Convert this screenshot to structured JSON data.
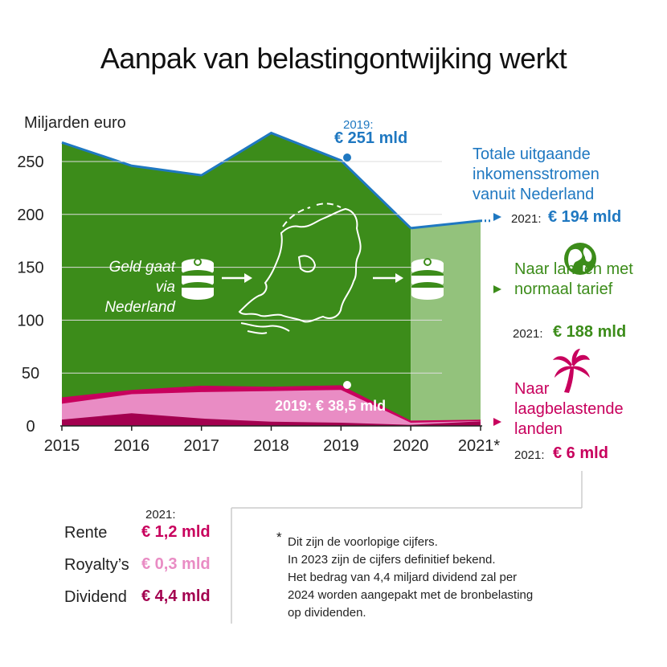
{
  "title": "Aanpak van belastingontwijking werkt",
  "colors": {
    "green": "#3c8c1a",
    "green_light": "#93c27c",
    "blue": "#1f78c1",
    "magenta": "#c8005d",
    "dark_magenta": "#a3004f",
    "pink": "#e98cc4"
  },
  "chart_data": {
    "type": "area",
    "ylabel": "Miljarden euro",
    "ylim": [
      0,
      270
    ],
    "yticks": [
      0,
      50,
      100,
      150,
      200,
      250
    ],
    "x": [
      "2015",
      "2016",
      "2017",
      "2018",
      "2019",
      "2020",
      "2021*"
    ],
    "series": [
      {
        "name": "Totale uitgaande inkomensstromen vanuit Nederland",
        "values": [
          268,
          246,
          237,
          277,
          251,
          187,
          194
        ],
        "style": "line"
      },
      {
        "name": "Naar landen met normaal tarief",
        "values": [
          241,
          212,
          199,
          240,
          212.5,
          182,
          188
        ]
      },
      {
        "name": "Dividend",
        "values": [
          6,
          12,
          7,
          4,
          3,
          1,
          4.4
        ]
      },
      {
        "name": "Royalty's",
        "values": [
          15,
          18,
          25,
          29,
          31,
          2,
          0.3
        ]
      },
      {
        "name": "Rente",
        "values": [
          6,
          4,
          6,
          4,
          4.5,
          2,
          1.2
        ]
      }
    ],
    "annotations": [
      {
        "year": "2019",
        "label": "2019:",
        "value": "€ 251 mld"
      },
      {
        "year": "2019",
        "label": "2019:",
        "value": "€ 38,5 mld"
      }
    ]
  },
  "labels": {
    "total_2019_year": "2019:",
    "total_2019_value": "€ 251 mld",
    "low_2019": "2019: € 38,5 mld",
    "total_title": "Totale uitgaande inkomensstromen vanuit Nederland",
    "total_2021_year": "2021:",
    "total_2021_value": "€ 194 mld",
    "normal_title": "Naar landen met normaal tarief",
    "normal_2021_year": "2021:",
    "normal_2021_value": "€ 188 mld",
    "low_title": "Naar laagbelastende landen",
    "low_2021_year": "2021:",
    "low_2021_value": "€ 6 mld",
    "flow_text": "Geld gaat via Nederland"
  },
  "icons": [
    "coins-stack-icon",
    "arrow-right-icon",
    "netherlands-map-icon",
    "globe-icon",
    "palm-tree-icon"
  ],
  "legend": {
    "header": "2021:",
    "items": [
      {
        "name": "Rente",
        "value": "€ 1,2 mld",
        "color": "#c8005d"
      },
      {
        "name": "Royalty’s",
        "value": "€ 0,3 mld",
        "color": "#e98cc4"
      },
      {
        "name": "Dividend",
        "value": "€ 4,4 mld",
        "color": "#a3004f"
      }
    ]
  },
  "footnote": {
    "star": "*",
    "lines": [
      "Dit zijn de voorlopige cijfers.",
      "In 2023 zijn de cijfers definitief bekend.",
      "Het bedrag van 4,4 miljard dividend zal per",
      "2024 worden aangepakt met de bronbelasting",
      "op dividenden."
    ]
  }
}
